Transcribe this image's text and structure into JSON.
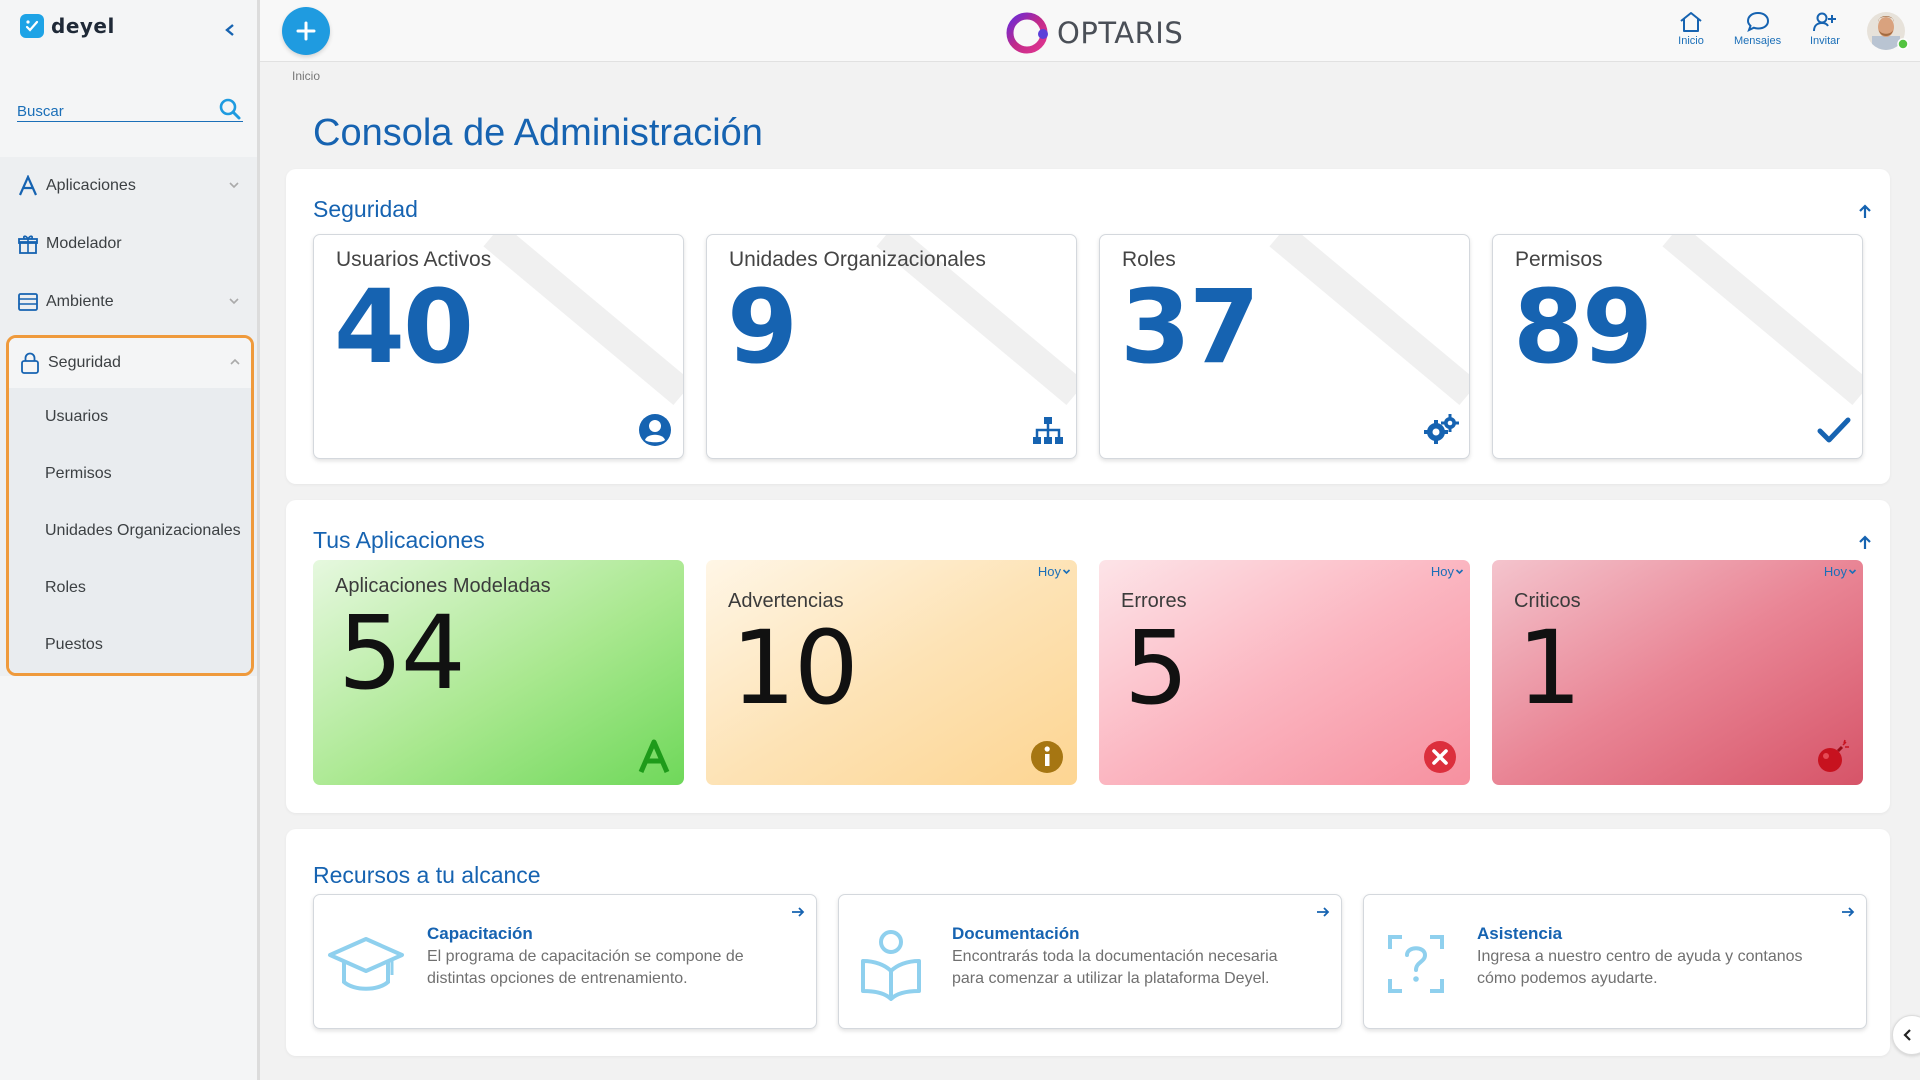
{
  "app": {
    "logo_text": "deyel",
    "brand_text": "OPTARIS"
  },
  "search": {
    "placeholder": "Buscar"
  },
  "sidebar": {
    "items": [
      {
        "label": "Aplicaciones",
        "icon": "apps-a-icon",
        "expandable": true
      },
      {
        "label": "Modelador",
        "icon": "gift-box-icon",
        "expandable": false
      },
      {
        "label": "Ambiente",
        "icon": "server-icon",
        "expandable": true
      }
    ],
    "security": {
      "label": "Seguridad",
      "icon": "lock-icon",
      "expanded": true,
      "subitems": [
        "Usuarios",
        "Permisos",
        "Unidades Organizacionales",
        "Roles",
        "Puestos"
      ]
    }
  },
  "topbar": {
    "home_label": "Inicio",
    "messages_label": "Mensajes",
    "invite_label": "Invitar"
  },
  "breadcrumb": "Inicio",
  "page_title": "Consola de Administración",
  "security_panel": {
    "title": "Seguridad",
    "cards": [
      {
        "title": "Usuarios Activos",
        "value": "40",
        "icon": "user-circle-icon"
      },
      {
        "title": "Unidades Organizacionales",
        "value": "9",
        "icon": "org-chart-icon"
      },
      {
        "title": "Roles",
        "value": "37",
        "icon": "gears-icon"
      },
      {
        "title": "Permisos",
        "value": "89",
        "icon": "check-icon"
      }
    ]
  },
  "apps_panel": {
    "title": "Tus Aplicaciones",
    "cards": [
      {
        "title": "Aplicaciones Modeladas",
        "value": "54",
        "icon": "letter-a-icon",
        "period": ""
      },
      {
        "title": "Advertencias",
        "value": "10",
        "icon": "info-circle-icon",
        "period": "Hoy"
      },
      {
        "title": "Errores",
        "value": "5",
        "icon": "x-circle-icon",
        "period": "Hoy"
      },
      {
        "title": "Criticos",
        "value": "1",
        "icon": "bomb-icon",
        "period": "Hoy"
      }
    ]
  },
  "resources_panel": {
    "title": "Recursos a tu alcance",
    "cards": [
      {
        "title": "Capacitación",
        "desc": "El programa de capacitación se compone de distintas opciones de entrenamiento.",
        "icon": "graduation-cap-icon"
      },
      {
        "title": "Documentación",
        "desc": "Encontrarás toda la documentación necesaria para comenzar a utilizar la plataforma Deyel.",
        "icon": "reader-book-icon"
      },
      {
        "title": "Asistencia",
        "desc": "Ingresa a nuestro centro de ayuda y contanos cómo podemos ayudarte.",
        "icon": "help-question-icon"
      }
    ]
  },
  "colors": {
    "primary": "#1663b1",
    "accent": "#1f9be0",
    "highlight_border": "#ef9a3c",
    "green_card": "#8fe07a",
    "yellow_card": "#fdd99a",
    "pink_card": "#f9a1b0",
    "red_card": "#e5677a"
  }
}
